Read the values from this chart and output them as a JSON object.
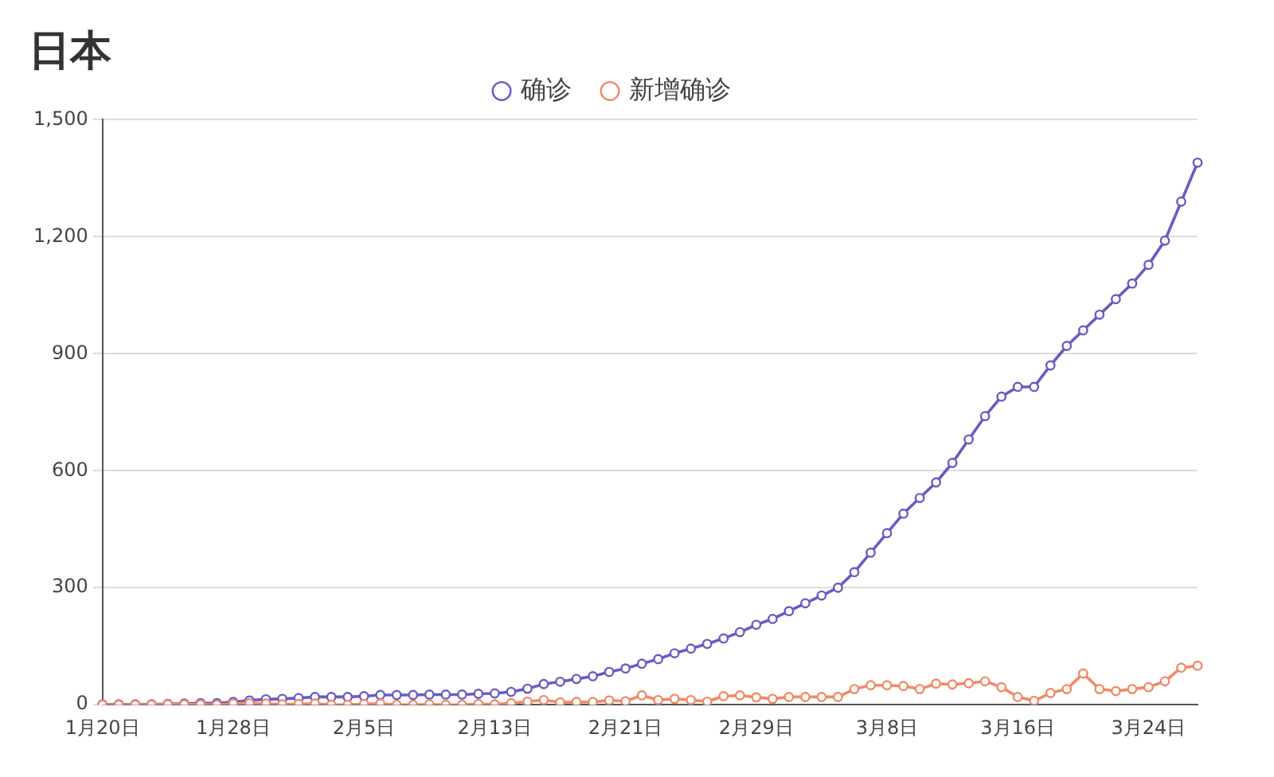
{
  "chart_data": {
    "type": "line",
    "title": "日本",
    "categories": [
      "1月20日",
      null,
      null,
      null,
      null,
      null,
      null,
      null,
      "1月28日",
      null,
      null,
      null,
      null,
      null,
      null,
      null,
      "2月5日",
      null,
      null,
      null,
      null,
      null,
      null,
      null,
      "2月13日",
      null,
      null,
      null,
      null,
      null,
      null,
      null,
      "2月21日",
      null,
      null,
      null,
      null,
      null,
      null,
      null,
      "2月29日",
      null,
      null,
      null,
      null,
      null,
      null,
      null,
      "3月8日",
      null,
      null,
      null,
      null,
      null,
      null,
      null,
      "3月16日",
      null,
      null,
      null,
      null,
      null,
      null,
      null,
      "3月24日",
      null,
      null,
      null
    ],
    "series": [
      {
        "name": "确诊",
        "color": "#6b5bc4",
        "values": [
          1,
          1,
          1,
          1,
          2,
          3,
          4,
          4,
          7,
          11,
          14,
          15,
          17,
          20,
          20,
          20,
          22,
          25,
          25,
          25,
          26,
          26,
          26,
          28,
          29,
          33,
          41,
          53,
          59,
          66,
          73,
          84,
          93,
          105,
          117,
          132,
          144,
          156,
          170,
          186,
          205,
          220,
          240,
          260,
          280,
          300,
          340,
          390,
          440,
          490,
          530,
          570,
          620,
          680,
          740,
          790,
          815,
          815,
          870,
          920,
          960,
          1000,
          1040,
          1080,
          1128,
          1190,
          1290,
          1390
        ]
      },
      {
        "name": "新增确诊",
        "color": "#f08a6a",
        "values": [
          0,
          0,
          0,
          0,
          1,
          1,
          1,
          0,
          3,
          4,
          3,
          1,
          2,
          3,
          0,
          0,
          2,
          3,
          0,
          0,
          1,
          0,
          0,
          2,
          1,
          4,
          8,
          12,
          6,
          7,
          7,
          11,
          9,
          24,
          12,
          15,
          12,
          8,
          22,
          24,
          19,
          15,
          20,
          20,
          20,
          20,
          40,
          50,
          50,
          48,
          40,
          54,
          52,
          55,
          60,
          45,
          20,
          10,
          30,
          40,
          80,
          40,
          35,
          40,
          45,
          60,
          95,
          100
        ]
      }
    ],
    "ylim": [
      0,
      1500
    ],
    "yticks": [
      0,
      300,
      600,
      900,
      {
        "value": 1200,
        "label": "1,200"
      },
      {
        "value": 1500,
        "label": "1,500"
      }
    ],
    "grid": "y",
    "legend": "top",
    "marker": "circle"
  }
}
